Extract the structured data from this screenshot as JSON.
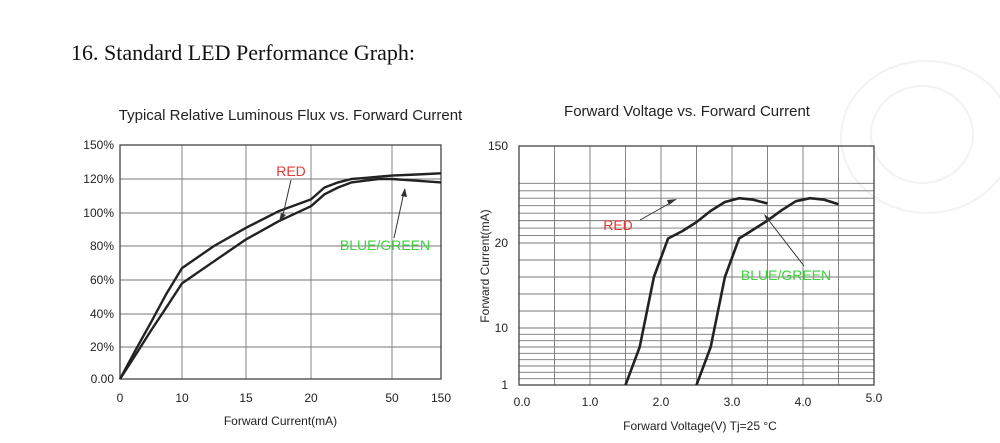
{
  "page": {
    "heading": "16. Standard LED Performance Graph:"
  },
  "chart_data": [
    {
      "type": "line",
      "title": "Typical Relative Luminous Flux vs. Forward Current",
      "xlabel": "Forward Current(mA)",
      "ylabel": "",
      "x_tick_labels": [
        "0",
        "10",
        "15",
        "20",
        "50",
        "150"
      ],
      "y_tick_labels": [
        "0.00",
        "20%",
        "40%",
        "60%",
        "80%",
        "100%",
        "120%",
        "150%"
      ],
      "grid": true,
      "annotations": [
        "RED",
        "BLUE/GREEN"
      ],
      "series": [
        {
          "name": "RED",
          "color": "#222222",
          "x": [
            0,
            2.5,
            5,
            7.5,
            10,
            12.5,
            15,
            17.5,
            20,
            25,
            30,
            35,
            40,
            45,
            50,
            55,
            60
          ],
          "y": [
            0,
            18,
            35,
            52,
            67,
            80,
            91,
            101,
            108,
            115,
            118,
            120,
            121,
            122,
            123,
            124,
            125
          ]
        },
        {
          "name": "BLUE/GREEN",
          "color": "#222222",
          "x": [
            0,
            2.5,
            5,
            7.5,
            10,
            12.5,
            15,
            17.5,
            20,
            25,
            30,
            35,
            40,
            45,
            50,
            55,
            60
          ],
          "y": [
            0,
            15,
            30,
            44,
            58,
            71,
            84,
            95,
            104,
            111,
            115,
            118,
            119,
            120,
            120,
            119,
            118
          ]
        }
      ]
    },
    {
      "type": "line",
      "title": "Forward Voltage vs. Forward Current",
      "xlabel": "Forward Voltage(V) Tj=25 °C",
      "ylabel": "Forward Current(mA)",
      "x_tick_labels": [
        "0.0",
        "1.0",
        "2.0",
        "3.0",
        "4.0",
        "5.0"
      ],
      "y_tick_labels": [
        "1",
        "10",
        "20",
        "150"
      ],
      "grid": true,
      "annotations": [
        "RED",
        "BLUE/GREEN"
      ],
      "series": [
        {
          "name": "RED",
          "color": "#222222",
          "x": [
            1.5,
            1.7,
            1.9,
            2.1,
            2.3,
            2.5,
            2.7,
            2.9,
            3.1,
            3.3,
            3.5
          ],
          "y": [
            1,
            7,
            16,
            26,
            36,
            48,
            63,
            75,
            80,
            78,
            73
          ]
        },
        {
          "name": "BLUE/GREEN",
          "color": "#222222",
          "x": [
            2.5,
            2.7,
            2.9,
            3.1,
            3.3,
            3.5,
            3.7,
            3.9,
            4.1,
            4.3,
            4.5
          ],
          "y": [
            1,
            7,
            16,
            26,
            38,
            50,
            64,
            76,
            80,
            78,
            72
          ]
        }
      ]
    }
  ]
}
